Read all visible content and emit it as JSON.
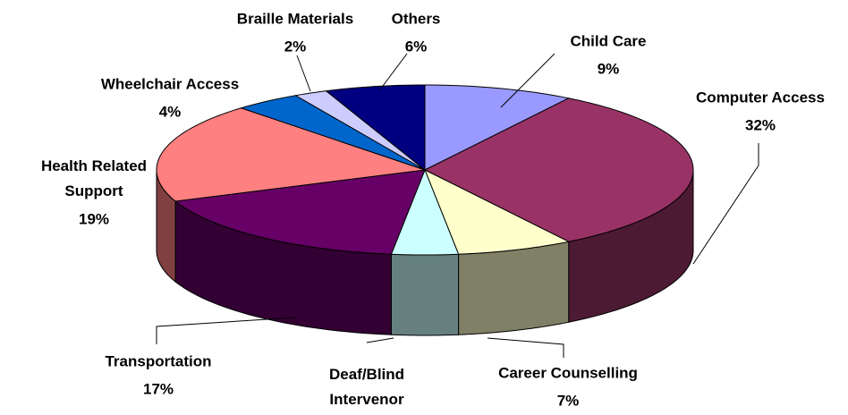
{
  "chart_data": {
    "type": "pie3d",
    "categories": [
      "Child Care",
      "Computer Access",
      "Career Counselling",
      "Deaf/Blind Intervenor",
      "Transportation",
      "Health Related Support",
      "Wheelchair Access",
      "Braille Materials",
      "Others"
    ],
    "values": [
      9,
      32,
      7,
      4,
      17,
      19,
      4,
      2,
      6
    ],
    "value_labels": [
      "9%",
      "32%",
      "7%",
      "4%",
      "17%",
      "19%",
      "4%",
      "2%",
      "6%"
    ],
    "colors": [
      "#9999ff",
      "#993366",
      "#ffffcc",
      "#ccffff",
      "#660066",
      "#ff8080",
      "#0066cc",
      "#ccccff",
      "#000080"
    ]
  }
}
